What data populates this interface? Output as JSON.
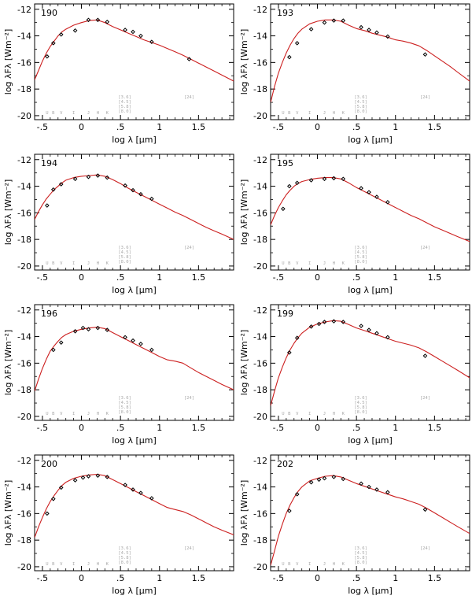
{
  "colors": {
    "model_curve": "#cc1f1f",
    "photometry_marker": "#000000",
    "band_label": "#a8a8a8",
    "frame": "#000000"
  },
  "axis_labels": {
    "x": "log λ [μm]",
    "y": "log λFλ [Wm⁻²]"
  },
  "band_labels_optical": [
    "U",
    "B",
    "V",
    "I",
    "J",
    "H",
    "K"
  ],
  "band_labels_irac": [
    "[3.6]",
    "[4.5]",
    "[5.8]",
    "[8.0]"
  ],
  "band_label_mips": "[24]",
  "chart_data": [
    {
      "type": "scatter",
      "panel_id": "190",
      "xlabel": "log λ [μm]",
      "ylabel": "log λFλ [Wm⁻²]",
      "xlim": [
        -0.6,
        1.95
      ],
      "ylim": [
        -20.3,
        -11.6
      ],
      "xticks": [
        -0.5,
        0,
        0.5,
        1,
        1.5
      ],
      "yticks": [
        -20,
        -18,
        -16,
        -14,
        -12
      ],
      "grid": false,
      "series": [
        {
          "kind": "model",
          "x": [
            -0.6,
            -0.55,
            -0.5,
            -0.45,
            -0.4,
            -0.35,
            -0.3,
            -0.25,
            -0.2,
            -0.1,
            0,
            0.1,
            0.2,
            0.3,
            0.4,
            0.5,
            0.6,
            0.7,
            0.8,
            0.9,
            1.0,
            1.1,
            1.2,
            1.3,
            1.4,
            1.5,
            1.6,
            1.7,
            1.8,
            1.95
          ],
          "y": [
            -17.3,
            -16.6,
            -15.9,
            -15.3,
            -14.8,
            -14.4,
            -14.0,
            -13.7,
            -13.5,
            -13.2,
            -13.0,
            -12.85,
            -12.8,
            -13.0,
            -13.3,
            -13.55,
            -13.8,
            -14.05,
            -14.3,
            -14.5,
            -14.7,
            -14.95,
            -15.2,
            -15.45,
            -15.75,
            -16.05,
            -16.35,
            -16.65,
            -16.95,
            -17.4
          ]
        },
        {
          "kind": "photometry",
          "x": [
            -0.44,
            -0.36,
            -0.26,
            -0.08,
            0.09,
            0.21,
            0.33,
            0.56,
            0.66,
            0.76,
            0.9,
            1.38
          ],
          "y": [
            -15.55,
            -14.55,
            -13.9,
            -13.6,
            -12.8,
            -12.8,
            -12.95,
            -13.55,
            -13.7,
            -14.0,
            -14.45,
            -15.75
          ]
        }
      ]
    },
    {
      "type": "scatter",
      "panel_id": "193",
      "xlabel": "log λ [μm]",
      "ylabel": "log λFλ [Wm⁻²]",
      "xlim": [
        -0.6,
        1.95
      ],
      "ylim": [
        -20.3,
        -11.6
      ],
      "xticks": [
        -0.5,
        0,
        0.5,
        1,
        1.5
      ],
      "yticks": [
        -20,
        -18,
        -16,
        -14,
        -12
      ],
      "grid": false,
      "series": [
        {
          "kind": "model",
          "x": [
            -0.6,
            -0.55,
            -0.5,
            -0.45,
            -0.4,
            -0.35,
            -0.3,
            -0.25,
            -0.2,
            -0.1,
            0,
            0.1,
            0.2,
            0.3,
            0.4,
            0.5,
            0.6,
            0.7,
            0.8,
            0.9,
            1.0,
            1.1,
            1.2,
            1.3,
            1.4,
            1.5,
            1.6,
            1.7,
            1.8,
            1.95
          ],
          "y": [
            -19.0,
            -17.8,
            -16.8,
            -16.0,
            -15.3,
            -14.7,
            -14.2,
            -13.8,
            -13.5,
            -13.1,
            -12.9,
            -12.8,
            -12.8,
            -12.9,
            -13.2,
            -13.45,
            -13.6,
            -13.8,
            -13.95,
            -14.1,
            -14.3,
            -14.4,
            -14.55,
            -14.75,
            -15.1,
            -15.5,
            -15.9,
            -16.3,
            -16.75,
            -17.4
          ]
        },
        {
          "kind": "photometry",
          "x": [
            -0.36,
            -0.26,
            -0.08,
            0.09,
            0.21,
            0.33,
            0.56,
            0.66,
            0.76,
            0.9,
            1.38
          ],
          "y": [
            -15.6,
            -14.55,
            -13.5,
            -13.0,
            -12.85,
            -12.85,
            -13.35,
            -13.55,
            -13.75,
            -14.05,
            -15.4
          ]
        }
      ]
    },
    {
      "type": "scatter",
      "panel_id": "194",
      "xlabel": "log λ [μm]",
      "ylabel": "log λFλ [Wm⁻²]",
      "xlim": [
        -0.6,
        1.95
      ],
      "ylim": [
        -20.3,
        -11.6
      ],
      "xticks": [
        -0.5,
        0,
        0.5,
        1,
        1.5
      ],
      "yticks": [
        -20,
        -18,
        -16,
        -14,
        -12
      ],
      "grid": false,
      "series": [
        {
          "kind": "model",
          "x": [
            -0.6,
            -0.55,
            -0.5,
            -0.45,
            -0.4,
            -0.35,
            -0.3,
            -0.25,
            -0.2,
            -0.1,
            0,
            0.1,
            0.2,
            0.3,
            0.4,
            0.5,
            0.6,
            0.7,
            0.8,
            0.9,
            1.0,
            1.1,
            1.2,
            1.3,
            1.4,
            1.5,
            1.6,
            1.7,
            1.8,
            1.95
          ],
          "y": [
            -16.5,
            -15.9,
            -15.4,
            -14.95,
            -14.6,
            -14.25,
            -14.0,
            -13.75,
            -13.55,
            -13.35,
            -13.25,
            -13.2,
            -13.15,
            -13.25,
            -13.5,
            -13.8,
            -14.15,
            -14.45,
            -14.75,
            -15.05,
            -15.35,
            -15.65,
            -15.95,
            -16.2,
            -16.5,
            -16.8,
            -17.1,
            -17.35,
            -17.6,
            -18.0
          ]
        },
        {
          "kind": "photometry",
          "x": [
            -0.44,
            -0.36,
            -0.26,
            -0.08,
            0.09,
            0.21,
            0.33,
            0.56,
            0.66,
            0.76,
            0.9
          ],
          "y": [
            -15.45,
            -14.25,
            -13.85,
            -13.45,
            -13.3,
            -13.2,
            -13.35,
            -13.95,
            -14.3,
            -14.6,
            -14.95
          ]
        }
      ]
    },
    {
      "type": "scatter",
      "panel_id": "195",
      "xlabel": "log λ [μm]",
      "ylabel": "log λFλ [Wm⁻²]",
      "xlim": [
        -0.6,
        1.95
      ],
      "ylim": [
        -20.3,
        -11.6
      ],
      "xticks": [
        -0.5,
        0,
        0.5,
        1,
        1.5
      ],
      "yticks": [
        -20,
        -18,
        -16,
        -14,
        -12
      ],
      "grid": false,
      "series": [
        {
          "kind": "model",
          "x": [
            -0.6,
            -0.55,
            -0.5,
            -0.45,
            -0.4,
            -0.35,
            -0.3,
            -0.25,
            -0.2,
            -0.1,
            0,
            0.1,
            0.2,
            0.3,
            0.4,
            0.5,
            0.6,
            0.7,
            0.8,
            0.9,
            1.0,
            1.1,
            1.2,
            1.3,
            1.4,
            1.5,
            1.6,
            1.7,
            1.8,
            1.95
          ],
          "y": [
            -16.9,
            -16.2,
            -15.6,
            -15.1,
            -14.65,
            -14.3,
            -14.0,
            -13.8,
            -13.65,
            -13.5,
            -13.4,
            -13.35,
            -13.35,
            -13.45,
            -13.75,
            -14.1,
            -14.4,
            -14.7,
            -15.0,
            -15.3,
            -15.6,
            -15.9,
            -16.2,
            -16.45,
            -16.75,
            -17.05,
            -17.3,
            -17.55,
            -17.8,
            -18.15
          ]
        },
        {
          "kind": "photometry",
          "x": [
            -0.44,
            -0.36,
            -0.26,
            -0.08,
            0.09,
            0.21,
            0.33,
            0.56,
            0.66,
            0.76,
            0.9
          ],
          "y": [
            -15.7,
            -14.0,
            -13.75,
            -13.55,
            -13.45,
            -13.4,
            -13.45,
            -14.15,
            -14.45,
            -14.8,
            -15.2
          ]
        }
      ]
    },
    {
      "type": "scatter",
      "panel_id": "196",
      "xlabel": "log λ [μm]",
      "ylabel": "log λFλ [Wm⁻²]",
      "xlim": [
        -0.6,
        1.95
      ],
      "ylim": [
        -20.3,
        -11.6
      ],
      "xticks": [
        -0.5,
        0,
        0.5,
        1,
        1.5
      ],
      "yticks": [
        -20,
        -18,
        -16,
        -14,
        -12
      ],
      "grid": false,
      "series": [
        {
          "kind": "model",
          "x": [
            -0.6,
            -0.55,
            -0.5,
            -0.45,
            -0.4,
            -0.35,
            -0.3,
            -0.25,
            -0.2,
            -0.1,
            0,
            0.1,
            0.2,
            0.3,
            0.4,
            0.5,
            0.6,
            0.7,
            0.8,
            0.9,
            1.0,
            1.1,
            1.2,
            1.3,
            1.4,
            1.5,
            1.6,
            1.7,
            1.8,
            1.95
          ],
          "y": [
            -18.1,
            -17.2,
            -16.4,
            -15.7,
            -15.1,
            -14.7,
            -14.35,
            -14.05,
            -13.85,
            -13.6,
            -13.45,
            -13.35,
            -13.3,
            -13.4,
            -13.7,
            -14.0,
            -14.3,
            -14.6,
            -14.9,
            -15.2,
            -15.5,
            -15.75,
            -15.85,
            -16.0,
            -16.35,
            -16.7,
            -17.0,
            -17.3,
            -17.6,
            -18.0
          ]
        },
        {
          "kind": "photometry",
          "x": [
            -0.36,
            -0.26,
            -0.08,
            0.02,
            0.09,
            0.21,
            0.33,
            0.56,
            0.66,
            0.76,
            0.9
          ],
          "y": [
            -15.0,
            -14.45,
            -13.6,
            -13.35,
            -13.45,
            -13.35,
            -13.5,
            -14.05,
            -14.3,
            -14.55,
            -15.0
          ]
        }
      ]
    },
    {
      "type": "scatter",
      "panel_id": "199",
      "xlabel": "log λ [μm]",
      "ylabel": "log λFλ [Wm⁻²]",
      "xlim": [
        -0.6,
        1.95
      ],
      "ylim": [
        -20.3,
        -11.6
      ],
      "xticks": [
        -0.5,
        0,
        0.5,
        1,
        1.5
      ],
      "yticks": [
        -20,
        -18,
        -16,
        -14,
        -12
      ],
      "grid": false,
      "series": [
        {
          "kind": "model",
          "x": [
            -0.6,
            -0.55,
            -0.5,
            -0.45,
            -0.4,
            -0.35,
            -0.3,
            -0.25,
            -0.2,
            -0.1,
            0,
            0.1,
            0.2,
            0.3,
            0.4,
            0.5,
            0.6,
            0.7,
            0.8,
            0.9,
            1.0,
            1.1,
            1.2,
            1.3,
            1.4,
            1.5,
            1.6,
            1.7,
            1.8,
            1.95
          ],
          "y": [
            -19.2,
            -18.1,
            -17.1,
            -16.3,
            -15.6,
            -15.0,
            -14.5,
            -14.1,
            -13.75,
            -13.3,
            -13.05,
            -12.9,
            -12.8,
            -12.85,
            -13.1,
            -13.35,
            -13.55,
            -13.75,
            -13.95,
            -14.15,
            -14.35,
            -14.5,
            -14.65,
            -14.85,
            -15.15,
            -15.5,
            -15.85,
            -16.2,
            -16.55,
            -17.1
          ]
        },
        {
          "kind": "photometry",
          "x": [
            -0.36,
            -0.26,
            -0.08,
            0.02,
            0.09,
            0.21,
            0.33,
            0.56,
            0.66,
            0.76,
            0.9,
            1.38
          ],
          "y": [
            -15.2,
            -14.1,
            -13.25,
            -13.05,
            -12.9,
            -12.85,
            -12.9,
            -13.2,
            -13.5,
            -13.75,
            -14.05,
            -15.45
          ]
        }
      ]
    },
    {
      "type": "scatter",
      "panel_id": "200",
      "xlabel": "log λ [μm]",
      "ylabel": "log λFλ [Wm⁻²]",
      "xlim": [
        -0.6,
        1.95
      ],
      "ylim": [
        -20.3,
        -11.6
      ],
      "xticks": [
        -0.5,
        0,
        0.5,
        1,
        1.5
      ],
      "yticks": [
        -20,
        -18,
        -16,
        -14,
        -12
      ],
      "grid": false,
      "series": [
        {
          "kind": "model",
          "x": [
            -0.6,
            -0.55,
            -0.5,
            -0.45,
            -0.4,
            -0.35,
            -0.3,
            -0.25,
            -0.2,
            -0.1,
            0,
            0.1,
            0.2,
            0.3,
            0.4,
            0.5,
            0.6,
            0.7,
            0.8,
            0.9,
            1.0,
            1.1,
            1.2,
            1.3,
            1.4,
            1.5,
            1.6,
            1.7,
            1.8,
            1.95
          ],
          "y": [
            -17.8,
            -17.0,
            -16.3,
            -15.65,
            -15.1,
            -14.65,
            -14.25,
            -13.9,
            -13.65,
            -13.35,
            -13.2,
            -13.1,
            -13.05,
            -13.15,
            -13.45,
            -13.75,
            -14.05,
            -14.35,
            -14.65,
            -14.95,
            -15.25,
            -15.55,
            -15.7,
            -15.85,
            -16.1,
            -16.4,
            -16.7,
            -17.0,
            -17.25,
            -17.6
          ]
        },
        {
          "kind": "photometry",
          "x": [
            -0.44,
            -0.36,
            -0.26,
            -0.08,
            0.02,
            0.09,
            0.21,
            0.33,
            0.56,
            0.66,
            0.76,
            0.9
          ],
          "y": [
            -16.0,
            -14.9,
            -14.05,
            -13.5,
            -13.3,
            -13.2,
            -13.15,
            -13.25,
            -13.85,
            -14.2,
            -14.45,
            -14.85
          ]
        }
      ]
    },
    {
      "type": "scatter",
      "panel_id": "202",
      "xlabel": "log λ [μm]",
      "ylabel": "log λFλ [Wm⁻²]",
      "xlim": [
        -0.6,
        1.95
      ],
      "ylim": [
        -20.3,
        -11.6
      ],
      "xticks": [
        -0.5,
        0,
        0.5,
        1,
        1.5
      ],
      "yticks": [
        -20,
        -18,
        -16,
        -14,
        -12
      ],
      "grid": false,
      "series": [
        {
          "kind": "model",
          "x": [
            -0.6,
            -0.55,
            -0.5,
            -0.45,
            -0.4,
            -0.35,
            -0.3,
            -0.25,
            -0.2,
            -0.1,
            0,
            0.1,
            0.2,
            0.3,
            0.4,
            0.5,
            0.6,
            0.7,
            0.8,
            0.9,
            1.0,
            1.1,
            1.2,
            1.3,
            1.4,
            1.5,
            1.6,
            1.7,
            1.8,
            1.95
          ],
          "y": [
            -19.9,
            -18.8,
            -17.7,
            -16.8,
            -16.0,
            -15.35,
            -14.8,
            -14.35,
            -14.0,
            -13.55,
            -13.35,
            -13.2,
            -13.15,
            -13.25,
            -13.5,
            -13.75,
            -13.95,
            -14.15,
            -14.35,
            -14.55,
            -14.75,
            -14.9,
            -15.1,
            -15.3,
            -15.6,
            -15.95,
            -16.3,
            -16.65,
            -17.0,
            -17.5
          ]
        },
        {
          "kind": "photometry",
          "x": [
            -0.36,
            -0.26,
            -0.08,
            0.02,
            0.09,
            0.21,
            0.33,
            0.56,
            0.66,
            0.76,
            0.9,
            1.38
          ],
          "y": [
            -15.8,
            -14.55,
            -13.65,
            -13.45,
            -13.35,
            -13.25,
            -13.4,
            -13.75,
            -14.0,
            -14.2,
            -14.4,
            -15.7
          ]
        }
      ]
    }
  ]
}
